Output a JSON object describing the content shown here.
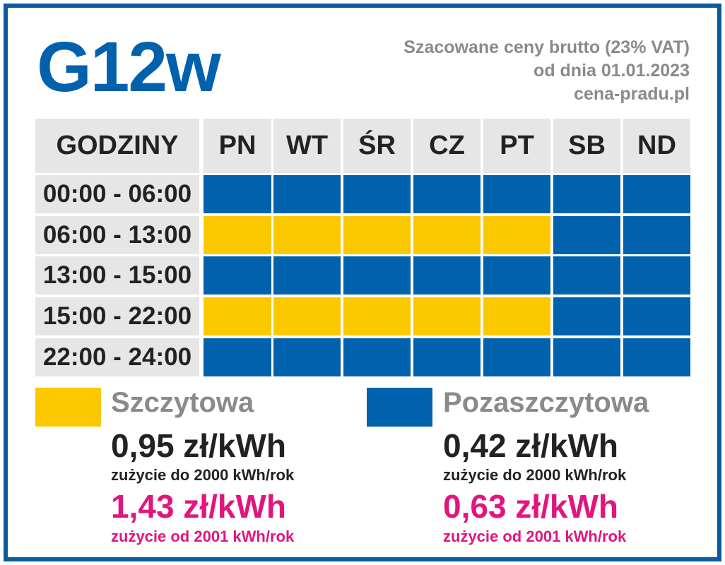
{
  "header": {
    "title": "G12w",
    "subtitle": [
      "Szacowane ceny brutto (23% VAT)",
      "od dnia 01.01.2023",
      "cena-pradu.pl"
    ]
  },
  "table": {
    "columns": [
      "GODZINY",
      "PN",
      "WT",
      "ŚR",
      "CZ",
      "PT",
      "SB",
      "ND"
    ],
    "rows": [
      {
        "label": "00:00 - 06:00",
        "colors": [
          "#0061ad",
          "#0061ad",
          "#0061ad",
          "#0061ad",
          "#0061ad",
          "#0061ad",
          "#0061ad"
        ]
      },
      {
        "label": "06:00 - 13:00",
        "colors": [
          "#fcc800",
          "#fcc800",
          "#fcc800",
          "#fcc800",
          "#fcc800",
          "#0061ad",
          "#0061ad"
        ]
      },
      {
        "label": "13:00 - 15:00",
        "colors": [
          "#0061ad",
          "#0061ad",
          "#0061ad",
          "#0061ad",
          "#0061ad",
          "#0061ad",
          "#0061ad"
        ]
      },
      {
        "label": "15:00 - 22:00",
        "colors": [
          "#fcc800",
          "#fcc800",
          "#fcc800",
          "#fcc800",
          "#fcc800",
          "#0061ad",
          "#0061ad"
        ]
      },
      {
        "label": "22:00 - 24:00",
        "colors": [
          "#0061ad",
          "#0061ad",
          "#0061ad",
          "#0061ad",
          "#0061ad",
          "#0061ad",
          "#0061ad"
        ]
      }
    ]
  },
  "legend": [
    {
      "name": "Szczytowa",
      "color": "#fcc800",
      "price1": "0,95 zł/kWh",
      "note1": "zużycie do 2000 kWh/rok",
      "price2": "1,43 zł/kWh",
      "note2": "zużycie od 2001 kWh/rok"
    },
    {
      "name": "Pozaszczytowa",
      "color": "#0061ad",
      "price1": "0,42 zł/kWh",
      "note1": "zużycie do 2000 kWh/rok",
      "price2": "0,63 zł/kWh",
      "note2": "zużycie od 2001 kWh/rok"
    }
  ]
}
